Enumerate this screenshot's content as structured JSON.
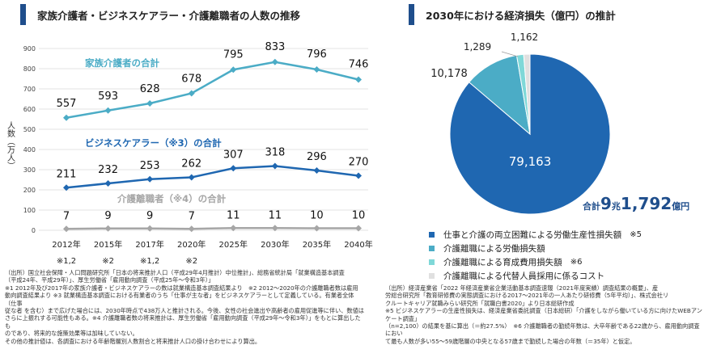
{
  "left": {
    "title": "家族介護者・ビジネスケアラー・介護離職者の人数の推移",
    "notes": "（出所）国立社会保障・人口問題研究所「日本の将来推計人口（平成29年4月推計）中位推計」、総務省統計局「就業構造基本調査\n（平成24年、平成29年）」、厚生労働省「雇用動向調査（平成25年〜令和3年）」\n※1 2012年及び2017年の家族介護者・ビジネスケアラーの数は就業構造基本調査結果より　※2 2012〜2020年の介護離職者数は雇用\n動向調査結果より ※3 就業構造基本調査における有業者のうち「仕事が主な者」をビジネスケアラーとして定義している。有業者全体（仕事\n従な者 を含む）まで広げた場合には、2030年時点で438万人と推計される。今後、女性の社会進出や高齢者の雇用促進等に伴い、数値は\nさらに上振れする可能性もある。※4 介護離職者数の将来推計は、厚生労働省「雇用動向調査（平成29年〜令和3年）」をもとに算出したも\nのであり、将来的な施策効果等は加味していない。\nその他の推計値は、各調査における年齢階層別人数割合と将来推計人口の掛け合わせにより算出。"
  },
  "right": {
    "title": "2030年における経済損失（億円）の推計",
    "total_prefix": "合計",
    "total_big1": "9",
    "total_mid": "兆",
    "total_big2": "1,792",
    "total_suffix": "億円",
    "notes": "（出所）経済産業省「2022 年経済産業省企業活動基本調査速報（2021年度実績）調査結果の概要」、産\n労総合研究所「教育研修費の実態調査における2017〜2021年の一人あたり研修費（5年平均）」、株式会社リ\nクルートキャリア就職みらい研究所「就職白書2020」より日本総研作成\n※5 ビジネスケアラーの生産性損失は、経済産業省委託調査（日本総研）「介護をしながら働いている方に向けたWEBアンケート調査」\n（n=2,100）の結果を基に算出（＝約27.5%）　※6 介護離職者の勤続年数は、大卒年齢である22歳から、雇用動向調査におい\nて最も人数が多い55〜59歳階層の中央となる57歳まで勤続した場合の年数（＝35年）と仮定。"
  },
  "chart_data": [
    {
      "type": "line",
      "ylabel": "人数（万人）",
      "ylim": [
        0,
        900
      ],
      "yticks": [
        "0",
        "100",
        "200",
        "300",
        "400",
        "500",
        "600",
        "700",
        "800",
        "900"
      ],
      "categories": [
        "2012年",
        "2015年",
        "2017年",
        "2020年",
        "2025年",
        "2030年",
        "2035年",
        "2040年"
      ],
      "category_notes": [
        "※1,2",
        "※2",
        "※1,2",
        "※2",
        "",
        "",
        "",
        ""
      ],
      "grid": true,
      "series": [
        {
          "name": "家族介護者の合計",
          "color": "#4bacc6",
          "values": [
            557,
            593,
            628,
            678,
            795,
            833,
            796,
            746
          ]
        },
        {
          "name": "ビジネスケアラー（※3）の合計",
          "color": "#1f67b1",
          "values": [
            211,
            232,
            253,
            262,
            307,
            318,
            296,
            270
          ]
        },
        {
          "name": "介護離職者（※4）の合計",
          "color": "#a6a6a6",
          "values": [
            7,
            9,
            9,
            7,
            11,
            11,
            10,
            10
          ]
        }
      ]
    },
    {
      "type": "pie",
      "slices": [
        {
          "label": "仕事と介護の両立困難による労働生産性損失額",
          "note": "※5",
          "value": 79163,
          "display": "79,163",
          "color": "#1f67b1"
        },
        {
          "label": "介護離職による労働損失額",
          "note": "",
          "value": 10178,
          "display": "10,178",
          "color": "#4bacc6"
        },
        {
          "label": "介護離職による育成費用損失額",
          "note": "※6",
          "value": 1289,
          "display": "1,289",
          "color": "#7fd8d8"
        },
        {
          "label": "介護離職による代替人員採用に係るコスト",
          "note": "",
          "value": 1162,
          "display": "1,162",
          "color": "#e0e0e0"
        }
      ]
    }
  ]
}
